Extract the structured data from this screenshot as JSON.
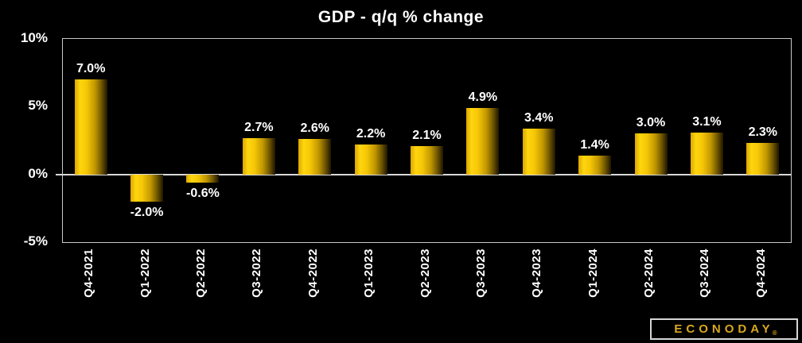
{
  "chart_data": {
    "type": "bar",
    "title": "GDP - q/q % change",
    "categories": [
      "Q4-2021",
      "Q1-2022",
      "Q2-2022",
      "Q3-2022",
      "Q4-2022",
      "Q1-2023",
      "Q2-2023",
      "Q3-2023",
      "Q4-2023",
      "Q1-2024",
      "Q2-2024",
      "Q3-2024",
      "Q4-2024"
    ],
    "values": [
      7.0,
      -2.0,
      -0.6,
      2.7,
      2.6,
      2.2,
      2.1,
      4.9,
      3.4,
      1.4,
      3.0,
      3.1,
      2.3
    ],
    "value_labels": [
      "7.0%",
      "-2.0%",
      "-0.6%",
      "2.7%",
      "2.6%",
      "2.2%",
      "2.1%",
      "4.9%",
      "3.4%",
      "1.4%",
      "3.0%",
      "3.1%",
      "2.3%"
    ],
    "xlabel": "",
    "ylabel": "",
    "ylim": [
      -5,
      10
    ],
    "yticks": [
      {
        "value": 10,
        "label": "10%"
      },
      {
        "value": 5,
        "label": "5%"
      },
      {
        "value": 0,
        "label": "0%"
      },
      {
        "value": -5,
        "label": "-5%"
      }
    ],
    "grid": "zero-line-only",
    "legend": "none",
    "colors": {
      "background": "#000000",
      "text": "#ffffff",
      "plot_border": "#c8c8c8",
      "zero_line": "#d9d9d9",
      "bar_gradient": [
        "#d9a600",
        "#ffd60e",
        "#f6c707",
        "#c09700",
        "#6b5300",
        "#1d1500"
      ]
    }
  },
  "branding": {
    "logo_text": "ECONODAY",
    "registered_mark": "®",
    "logo_color": "#d9a81f"
  }
}
